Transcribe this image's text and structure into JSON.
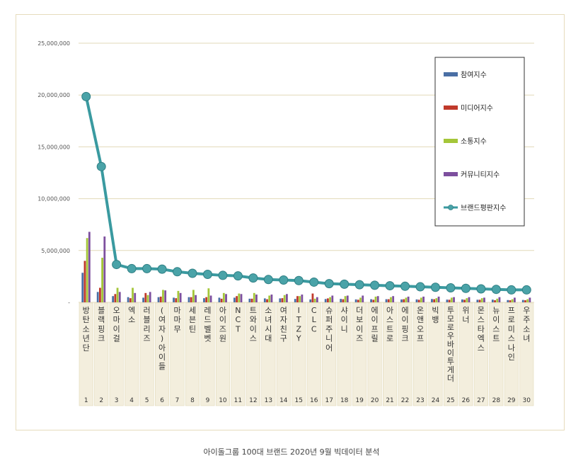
{
  "caption": "아이돌그룹 100대 브랜드 2020년 9월 빅데이터 분석",
  "colors": {
    "participation": "#4a6fa5",
    "media": "#c0392b",
    "communication": "#a4c639",
    "community": "#7d4f9e",
    "brand": "#4aa3a8",
    "brand_line": "#3a9aa0",
    "grid": "#e2d9b8",
    "label_box": "#f3eedd"
  },
  "chart_data": {
    "type": "bar",
    "ylim": [
      0,
      25000000
    ],
    "y_ticks": [
      {
        "value": 25000000,
        "label": "25,000,000"
      },
      {
        "value": 20000000,
        "label": "20,000,000"
      },
      {
        "value": 15000000,
        "label": "15,000,000"
      },
      {
        "value": 10000000,
        "label": "10,000,000"
      },
      {
        "value": 5000000,
        "label": "5,000,000"
      },
      {
        "value": 0,
        "label": "-"
      }
    ],
    "legend_position": "top-right",
    "ranks": [
      "1",
      "2",
      "3",
      "4",
      "5",
      "6",
      "7",
      "8",
      "9",
      "10",
      "11",
      "12",
      "13",
      "14",
      "15",
      "16",
      "17",
      "18",
      "19",
      "20",
      "21",
      "22",
      "23",
      "24",
      "25",
      "26",
      "27",
      "28",
      "29",
      "30"
    ],
    "categories": [
      "방탄소년단",
      "블랙핑크",
      "오마이걸",
      "엑소",
      "러블리즈",
      "(여자)아이들",
      "마마무",
      "세븐틴",
      "레드벨벳",
      "아이즈원",
      "NCT",
      "트와이스",
      "소녀시대",
      "여자친구",
      "ITZY",
      "CLC",
      "슈퍼주니어",
      "샤이니",
      "더보이즈",
      "에이프릴",
      "아스트로",
      "에이핑크",
      "온앤오프",
      "빅뱅",
      "투모로우바이투게더",
      "위너",
      "몬스타엑스",
      "뉴이스트",
      "프로미스나인",
      "우주소녀"
    ],
    "series": [
      {
        "name": "참여지수",
        "key": "participation",
        "values": [
          2850000,
          1000000,
          600000,
          500000,
          450000,
          500000,
          450000,
          500000,
          400000,
          450000,
          450000,
          350000,
          380000,
          380000,
          330000,
          280000,
          320000,
          330000,
          280000,
          300000,
          300000,
          280000,
          280000,
          320000,
          260000,
          280000,
          250000,
          260000,
          220000,
          230000
        ]
      },
      {
        "name": "미디어지수",
        "key": "media",
        "values": [
          4000000,
          1400000,
          800000,
          400000,
          900000,
          550000,
          400000,
          500000,
          500000,
          350000,
          600000,
          350000,
          300000,
          400000,
          600000,
          850000,
          380000,
          300000,
          250000,
          250000,
          300000,
          300000,
          250000,
          300000,
          250000,
          250000,
          250000,
          200000,
          200000,
          200000
        ]
      },
      {
        "name": "소통지수",
        "key": "communication",
        "values": [
          6200000,
          4300000,
          1400000,
          1400000,
          700000,
          1200000,
          1100000,
          1200000,
          1350000,
          900000,
          850000,
          900000,
          650000,
          700000,
          600000,
          350000,
          500000,
          600000,
          450000,
          550000,
          500000,
          450000,
          450000,
          400000,
          450000,
          400000,
          400000,
          350000,
          300000,
          300000
        ]
      },
      {
        "name": "커뮤니티지수",
        "key": "community",
        "values": [
          6800000,
          6350000,
          1000000,
          900000,
          1000000,
          1150000,
          900000,
          700000,
          650000,
          800000,
          800000,
          750000,
          750000,
          800000,
          750000,
          500000,
          650000,
          650000,
          650000,
          600000,
          600000,
          550000,
          550000,
          550000,
          500000,
          500000,
          450000,
          500000,
          450000,
          450000
        ]
      },
      {
        "name": "브랜드평판지수",
        "key": "brand",
        "values": [
          19850000,
          13100000,
          3650000,
          3250000,
          3250000,
          3200000,
          2950000,
          2800000,
          2700000,
          2600000,
          2550000,
          2350000,
          2200000,
          2150000,
          2100000,
          1950000,
          1800000,
          1750000,
          1700000,
          1650000,
          1600000,
          1550000,
          1500000,
          1450000,
          1400000,
          1350000,
          1300000,
          1250000,
          1200000,
          1200000
        ]
      }
    ]
  }
}
